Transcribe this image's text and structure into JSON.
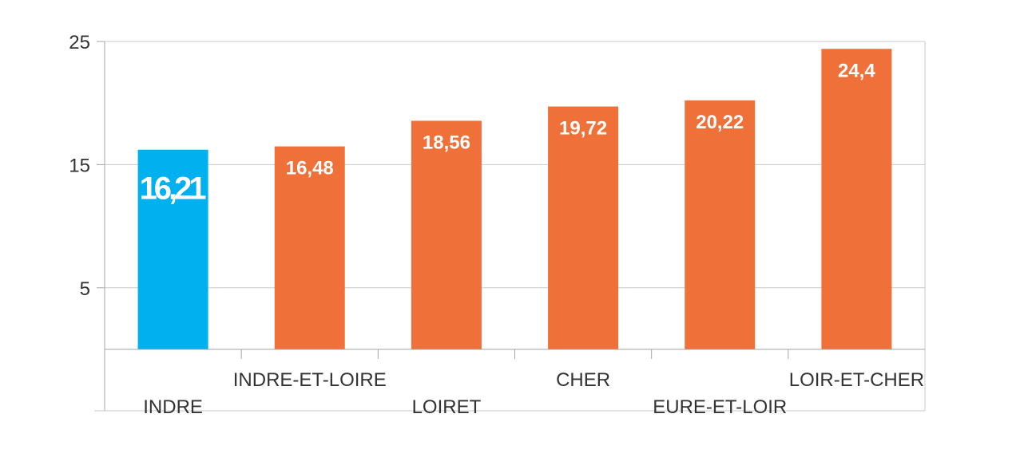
{
  "chart_data": {
    "type": "bar",
    "title": "",
    "xlabel": "",
    "ylabel": "",
    "categories": [
      "INDRE",
      "INDRE-ET-LOIRE",
      "LOIRET",
      "CHER",
      "EURE-ET-LOIR",
      "LOIR-ET-CHER"
    ],
    "values": [
      16.21,
      16.48,
      18.56,
      19.72,
      20.22,
      24.4
    ],
    "value_labels": [
      "16,21",
      "16,48",
      "18,56",
      "19,72",
      "20,22",
      "24,4"
    ],
    "yticks": [
      "5",
      "15",
      "25"
    ],
    "ytick_values": [
      5,
      15,
      25
    ],
    "ylim": [
      0,
      25
    ],
    "grid": true,
    "legend": "none",
    "colors": {
      "highlight": "#00b0ef",
      "bar": "#f07039",
      "grid": "#c8c8c8",
      "axis": "#a6a6a6"
    },
    "highlight_index": 0
  }
}
